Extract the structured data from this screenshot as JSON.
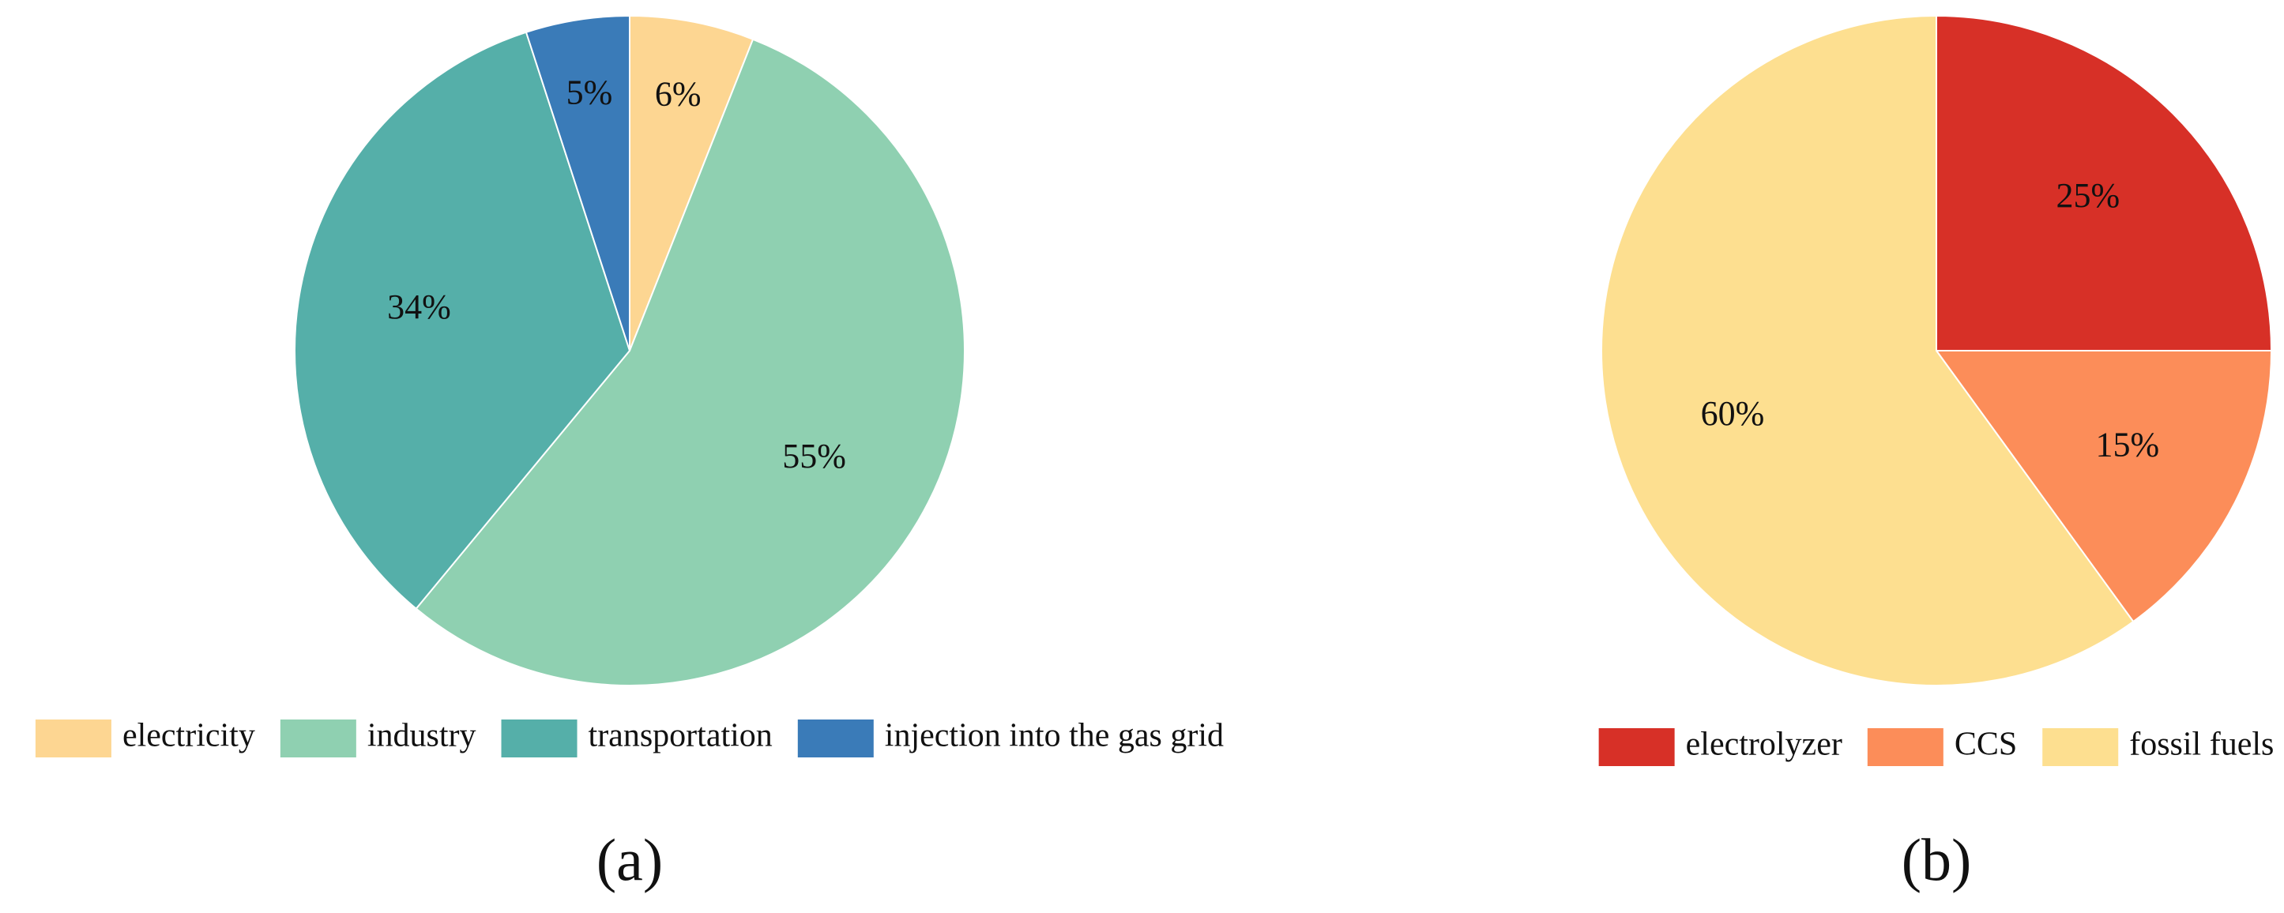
{
  "chart_data": [
    {
      "type": "pie",
      "caption": "(a)",
      "categories": [
        "electricity",
        "industry",
        "transportation",
        "injection into the gas grid"
      ],
      "values": [
        6,
        55,
        34,
        5
      ],
      "value_labels": [
        "6%",
        "55%",
        "34%",
        "5%"
      ],
      "colors": [
        "#fdd692",
        "#8fd0b1",
        "#55afa9",
        "#3a7bb8"
      ]
    },
    {
      "type": "pie",
      "caption": "(b)",
      "categories": [
        "electrolyzer",
        "CCS",
        "fossil fuels"
      ],
      "values": [
        25,
        15,
        60
      ],
      "value_labels": [
        "25%",
        "15%",
        "60%"
      ],
      "colors": [
        "#d73027",
        "#fc8d59",
        "#fddf90"
      ]
    }
  ]
}
